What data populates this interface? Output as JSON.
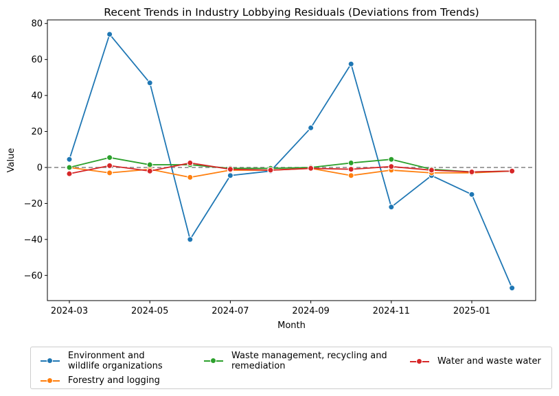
{
  "chart_data": {
    "type": "line",
    "title": "Recent Trends in Industry Lobbying Residuals (Deviations from Trends)",
    "xlabel": "Month",
    "ylabel": "Value",
    "x": [
      "2024-03",
      "2024-04",
      "2024-05",
      "2024-06",
      "2024-07",
      "2024-08",
      "2024-09",
      "2024-10",
      "2024-11",
      "2024-12",
      "2025-01",
      "2025-02"
    ],
    "xticks": [
      "2024-03",
      "2024-05",
      "2024-07",
      "2024-09",
      "2024-11",
      "2025-01"
    ],
    "yticks": [
      80,
      60,
      40,
      20,
      0,
      -20,
      -40,
      -60
    ],
    "ytick_labels": [
      "80",
      "60",
      "40",
      "20",
      "0",
      "−20",
      "−40",
      "−60"
    ],
    "ylim": [
      -74,
      82
    ],
    "reference_line": 0,
    "legend_position": "bottom",
    "series": [
      {
        "name": "Environment and wildlife organizations",
        "color": "#1f77b4",
        "values": [
          4.5,
          74,
          47,
          -40,
          -4.5,
          -2,
          22,
          57.5,
          -22,
          -4.5,
          -15,
          -67
        ]
      },
      {
        "name": "Forestry and logging",
        "color": "#ff7f0e",
        "values": [
          0,
          -3,
          -1,
          -5.5,
          -1.5,
          -1.5,
          -0.5,
          -4.5,
          -1.5,
          -3,
          -3,
          -2
        ]
      },
      {
        "name": "Waste management, recycling and remediation",
        "color": "#2ca02c",
        "values": [
          0,
          5.5,
          1.5,
          1.5,
          -0.5,
          -0.5,
          0,
          2.5,
          4.5,
          -1,
          -2.5,
          -2
        ]
      },
      {
        "name": "Water and waste water",
        "color": "#d62728",
        "values": [
          -3.5,
          1,
          -2,
          2.5,
          -1,
          -1.5,
          -0.5,
          -1,
          0.5,
          -1.5,
          -2.5,
          -2
        ]
      }
    ]
  }
}
